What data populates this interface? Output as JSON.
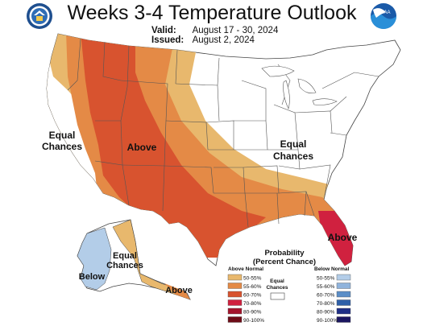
{
  "header": {
    "title": "Weeks 3-4 Temperature Outlook",
    "valid_label": "Valid:",
    "valid_value": "August 17 - 30, 2024",
    "issued_label": "Issued:",
    "issued_value": "August 2, 2024"
  },
  "logos": {
    "left": "department-of-commerce-seal",
    "right": "noaa-logo",
    "right_text": "NOAA"
  },
  "map_labels": {
    "west_equal_line1": "Equal",
    "west_equal_line2": "Chances",
    "above_main": "Above",
    "east_equal_line1": "Equal",
    "east_equal_line2": "Chances",
    "above_florida": "Above",
    "alaska_equal_line1": "Equal",
    "alaska_equal_line2": "Chances",
    "alaska_below": "Below",
    "alaska_above": "Above"
  },
  "legend": {
    "title_line1": "Probability",
    "title_line2": "(Percent Chance)",
    "above_header": "Above Normal",
    "below_header": "Below Normal",
    "equal_line1": "Equal",
    "equal_line2": "Chances",
    "above_items": [
      {
        "label": "50-55%",
        "color": "#e8b86d"
      },
      {
        "label": "55-60%",
        "color": "#e48a46"
      },
      {
        "label": "60-70%",
        "color": "#d8532f"
      },
      {
        "label": "70-80%",
        "color": "#d0213f"
      },
      {
        "label": "80-90%",
        "color": "#a4142c"
      },
      {
        "label": "90-100%",
        "color": "#6e0c17"
      }
    ],
    "below_items": [
      {
        "label": "50-55%",
        "color": "#b3cde8"
      },
      {
        "label": "55-60%",
        "color": "#8fb3dc"
      },
      {
        "label": "60-70%",
        "color": "#5b8ec7"
      },
      {
        "label": "70-80%",
        "color": "#2e5fa8"
      },
      {
        "label": "80-90%",
        "color": "#1f2f86"
      },
      {
        "label": "90-100%",
        "color": "#1b1660"
      }
    ],
    "equal_color": "#ffffff"
  }
}
